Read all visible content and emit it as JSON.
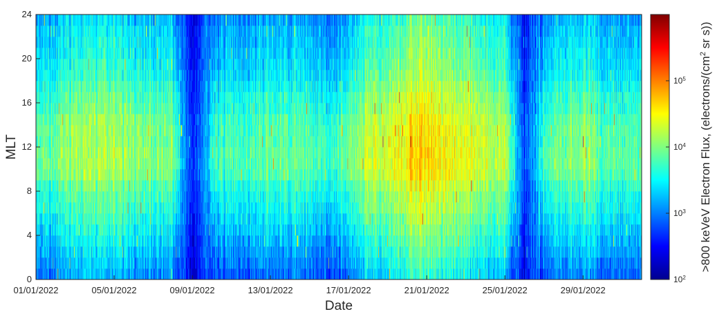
{
  "chart_data": {
    "type": "heatmap",
    "xlabel": "Date",
    "ylabel": "MLT",
    "x_range": [
      "01/01/2022",
      "01/02/2022"
    ],
    "y_range": [
      0,
      24
    ],
    "y_bin_hours": 1,
    "x_bins_per_day": 36,
    "x_ticks": [
      "01/01/2022",
      "05/01/2022",
      "09/01/2022",
      "13/01/2022",
      "17/01/2022",
      "21/01/2022",
      "25/01/2022",
      "29/01/2022"
    ],
    "y_ticks": [
      0,
      4,
      8,
      12,
      16,
      20,
      24
    ],
    "colorbar": {
      "label": ">800 keVeV Electron Flux, (electrons/(cm² sr s))",
      "label_main": ">800 keVeV Electron Flux, (electrons/(cm",
      "label_sup": "2",
      "label_end": " sr s))",
      "scale": "log",
      "range": [
        100,
        1000000
      ],
      "tick_values": [
        100,
        1000,
        10000,
        100000
      ],
      "tick_labels": [
        {
          "base": "10",
          "exp": "2"
        },
        {
          "base": "10",
          "exp": "3"
        },
        {
          "base": "10",
          "exp": "4"
        },
        {
          "base": "10",
          "exp": "5"
        }
      ],
      "colormap": "jet"
    },
    "grid": false,
    "daily_level_log10": [
      3.5,
      3.55,
      3.75,
      3.8,
      3.8,
      3.7,
      3.6,
      3.55,
      2.55,
      3.3,
      3.4,
      3.45,
      3.5,
      3.5,
      3.45,
      3.3,
      3.6,
      3.9,
      3.95,
      4.2,
      4.3,
      4.15,
      4.0,
      3.9,
      3.85,
      2.6,
      3.4,
      3.6,
      3.65,
      3.5,
      3.45
    ],
    "mlt_profile_log10": [
      -0.55,
      -0.45,
      -0.35,
      -0.25,
      -0.15,
      -0.05,
      0.05,
      0.1,
      0.2,
      0.35,
      0.4,
      0.4,
      0.35,
      0.35,
      0.3,
      0.2,
      0.15,
      0.05,
      -0.05,
      -0.1,
      -0.15,
      -0.2,
      -0.25,
      -0.35
    ]
  }
}
